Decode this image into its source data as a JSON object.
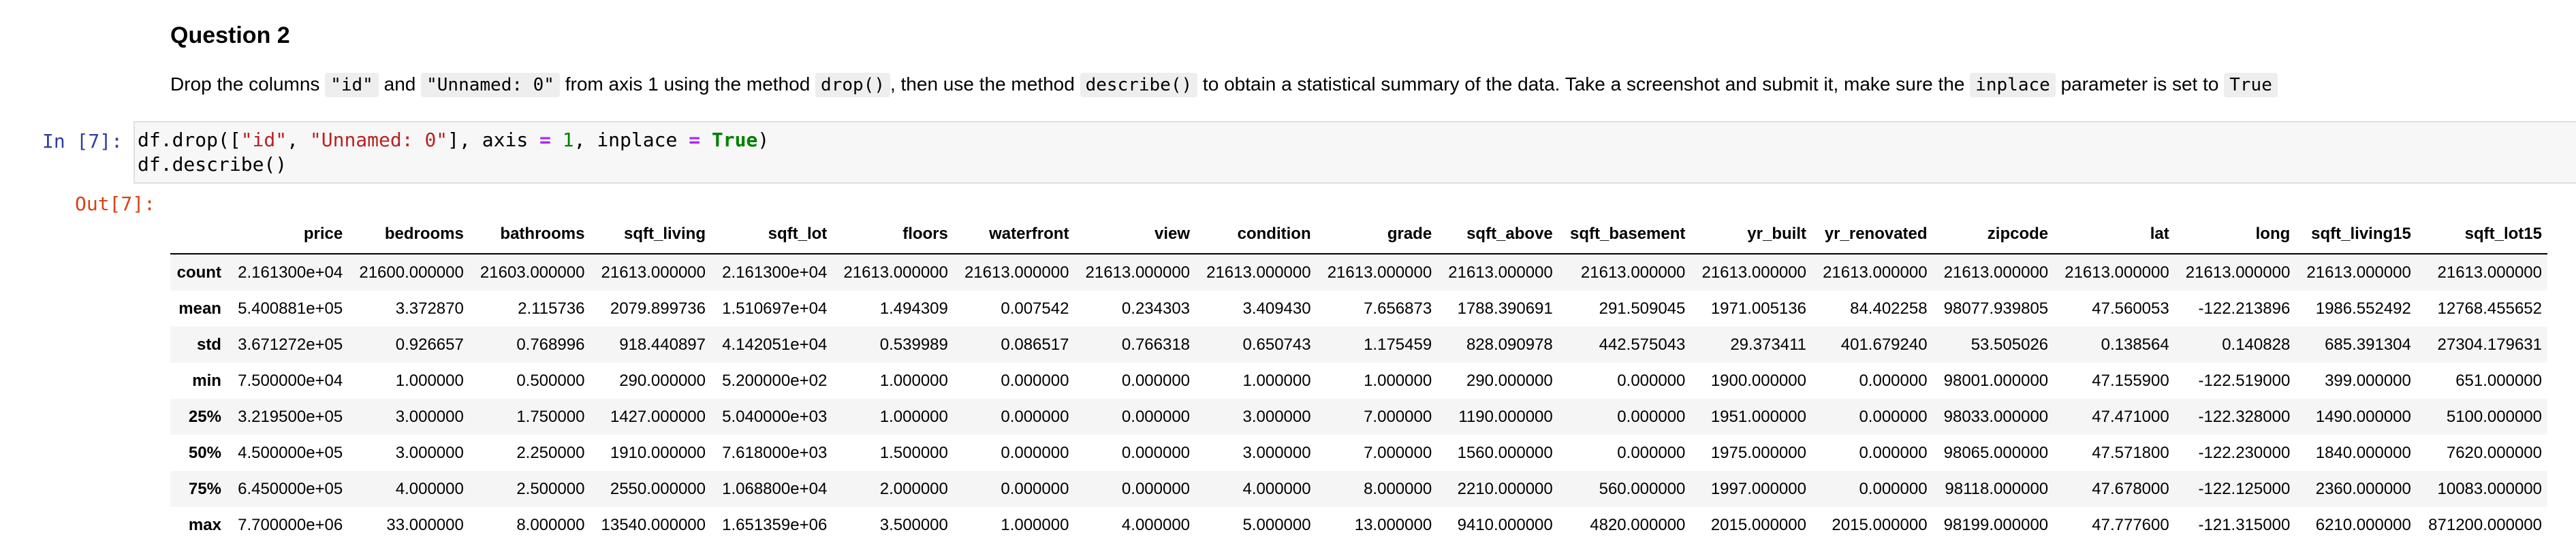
{
  "markdown": {
    "title": "Question 2",
    "text_parts": [
      {
        "type": "text",
        "value": "Drop the columns "
      },
      {
        "type": "code",
        "value": "\"id\""
      },
      {
        "type": "text",
        "value": " and "
      },
      {
        "type": "code",
        "value": "\"Unnamed: 0\""
      },
      {
        "type": "text",
        "value": " from axis 1 using the method "
      },
      {
        "type": "code",
        "value": "drop()"
      },
      {
        "type": "text",
        "value": ", then use the method "
      },
      {
        "type": "code",
        "value": "describe()"
      },
      {
        "type": "text",
        "value": " to obtain a statistical summary of the data. Take a screenshot and submit it, make sure the "
      },
      {
        "type": "code",
        "value": "inplace"
      },
      {
        "type": "text",
        "value": " parameter is set to "
      },
      {
        "type": "code",
        "value": "True"
      }
    ]
  },
  "code_cell": {
    "prompt": "In [7]:",
    "lines": [
      [
        {
          "t": "plain",
          "v": "df.drop(["
        },
        {
          "t": "str",
          "v": "\"id\""
        },
        {
          "t": "plain",
          "v": ", "
        },
        {
          "t": "str",
          "v": "\"Unnamed: 0\""
        },
        {
          "t": "plain",
          "v": "], axis "
        },
        {
          "t": "op",
          "v": "="
        },
        {
          "t": "plain",
          "v": " "
        },
        {
          "t": "num",
          "v": "1"
        },
        {
          "t": "plain",
          "v": ", inplace "
        },
        {
          "t": "op",
          "v": "="
        },
        {
          "t": "plain",
          "v": " "
        },
        {
          "t": "kw",
          "v": "True"
        },
        {
          "t": "plain",
          "v": ")"
        }
      ],
      [
        {
          "t": "plain",
          "v": "df.describe()"
        }
      ]
    ]
  },
  "output": {
    "prompt": "Out[7]:",
    "columns": [
      "price",
      "bedrooms",
      "bathrooms",
      "sqft_living",
      "sqft_lot",
      "floors",
      "waterfront",
      "view",
      "condition",
      "grade",
      "sqft_above",
      "sqft_basement",
      "yr_built",
      "yr_renovated",
      "zipcode",
      "lat",
      "long",
      "sqft_living15",
      "sqft_lot15"
    ],
    "rows": [
      {
        "index": "count",
        "values": [
          "2.161300e+04",
          "21600.000000",
          "21603.000000",
          "21613.000000",
          "2.161300e+04",
          "21613.000000",
          "21613.000000",
          "21613.000000",
          "21613.000000",
          "21613.000000",
          "21613.000000",
          "21613.000000",
          "21613.000000",
          "21613.000000",
          "21613.000000",
          "21613.000000",
          "21613.000000",
          "21613.000000",
          "21613.000000"
        ]
      },
      {
        "index": "mean",
        "values": [
          "5.400881e+05",
          "3.372870",
          "2.115736",
          "2079.899736",
          "1.510697e+04",
          "1.494309",
          "0.007542",
          "0.234303",
          "3.409430",
          "7.656873",
          "1788.390691",
          "291.509045",
          "1971.005136",
          "84.402258",
          "98077.939805",
          "47.560053",
          "-122.213896",
          "1986.552492",
          "12768.455652"
        ]
      },
      {
        "index": "std",
        "values": [
          "3.671272e+05",
          "0.926657",
          "0.768996",
          "918.440897",
          "4.142051e+04",
          "0.539989",
          "0.086517",
          "0.766318",
          "0.650743",
          "1.175459",
          "828.090978",
          "442.575043",
          "29.373411",
          "401.679240",
          "53.505026",
          "0.138564",
          "0.140828",
          "685.391304",
          "27304.179631"
        ]
      },
      {
        "index": "min",
        "values": [
          "7.500000e+04",
          "1.000000",
          "0.500000",
          "290.000000",
          "5.200000e+02",
          "1.000000",
          "0.000000",
          "0.000000",
          "1.000000",
          "1.000000",
          "290.000000",
          "0.000000",
          "1900.000000",
          "0.000000",
          "98001.000000",
          "47.155900",
          "-122.519000",
          "399.000000",
          "651.000000"
        ]
      },
      {
        "index": "25%",
        "values": [
          "3.219500e+05",
          "3.000000",
          "1.750000",
          "1427.000000",
          "5.040000e+03",
          "1.000000",
          "0.000000",
          "0.000000",
          "3.000000",
          "7.000000",
          "1190.000000",
          "0.000000",
          "1951.000000",
          "0.000000",
          "98033.000000",
          "47.471000",
          "-122.328000",
          "1490.000000",
          "5100.000000"
        ]
      },
      {
        "index": "50%",
        "values": [
          "4.500000e+05",
          "3.000000",
          "2.250000",
          "1910.000000",
          "7.618000e+03",
          "1.500000",
          "0.000000",
          "0.000000",
          "3.000000",
          "7.000000",
          "1560.000000",
          "0.000000",
          "1975.000000",
          "0.000000",
          "98065.000000",
          "47.571800",
          "-122.230000",
          "1840.000000",
          "7620.000000"
        ]
      },
      {
        "index": "75%",
        "values": [
          "6.450000e+05",
          "4.000000",
          "2.500000",
          "2550.000000",
          "1.068800e+04",
          "2.000000",
          "0.000000",
          "0.000000",
          "4.000000",
          "8.000000",
          "2210.000000",
          "560.000000",
          "1997.000000",
          "0.000000",
          "98118.000000",
          "47.678000",
          "-122.125000",
          "2360.000000",
          "10083.000000"
        ]
      },
      {
        "index": "max",
        "values": [
          "7.700000e+06",
          "33.000000",
          "8.000000",
          "13540.000000",
          "1.651359e+06",
          "3.500000",
          "1.000000",
          "4.000000",
          "5.000000",
          "13.000000",
          "9410.000000",
          "4820.000000",
          "2015.000000",
          "2015.000000",
          "98199.000000",
          "47.777600",
          "-121.315000",
          "6210.000000",
          "871200.000000"
        ]
      }
    ]
  }
}
